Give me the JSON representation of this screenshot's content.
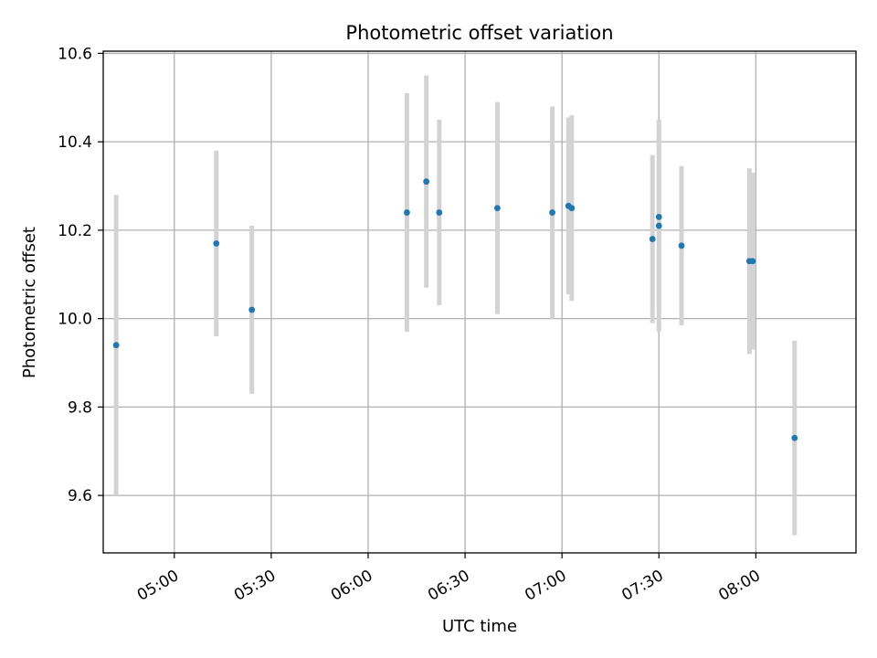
{
  "chart_data": {
    "type": "scatter",
    "title": "Photometric offset variation",
    "xlabel": "UTC time",
    "ylabel": "Photometric offset",
    "x_ticks": [
      "05:00",
      "05:30",
      "06:00",
      "06:30",
      "07:00",
      "07:30",
      "08:00"
    ],
    "y_ticks": [
      "9.6",
      "9.8",
      "10.0",
      "10.2",
      "10.4",
      "10.6"
    ],
    "xlim": [
      "04:38",
      "08:31"
    ],
    "ylim": [
      9.47,
      10.605
    ],
    "grid": true,
    "points": [
      {
        "t": "04:42",
        "y": 9.94,
        "err": 0.34
      },
      {
        "t": "05:13",
        "y": 10.17,
        "err": 0.21
      },
      {
        "t": "05:24",
        "y": 10.02,
        "err": 0.19
      },
      {
        "t": "06:12",
        "y": 10.24,
        "err": 0.27
      },
      {
        "t": "06:18",
        "y": 10.31,
        "err": 0.24
      },
      {
        "t": "06:22",
        "y": 10.24,
        "err": 0.21
      },
      {
        "t": "06:40",
        "y": 10.25,
        "err": 0.24
      },
      {
        "t": "06:57",
        "y": 10.24,
        "err": 0.24
      },
      {
        "t": "07:02",
        "y": 10.255,
        "err": 0.2
      },
      {
        "t": "07:03",
        "y": 10.25,
        "err": 0.21
      },
      {
        "t": "07:28",
        "y": 10.18,
        "err": 0.19
      },
      {
        "t": "07:30",
        "y": 10.21,
        "err": 0.24
      },
      {
        "t": "07:30",
        "y": 10.23,
        "err": 0.21
      },
      {
        "t": "07:37",
        "y": 10.165,
        "err": 0.18
      },
      {
        "t": "07:58",
        "y": 10.13,
        "err": 0.21
      },
      {
        "t": "07:59",
        "y": 10.13,
        "err": 0.2
      },
      {
        "t": "08:12",
        "y": 9.73,
        "err": 0.22
      }
    ],
    "colors": {
      "point": "#1f77b4",
      "errorbar": "#d3d3d3",
      "grid": "#b0b0b0",
      "axes": "#000000"
    }
  }
}
